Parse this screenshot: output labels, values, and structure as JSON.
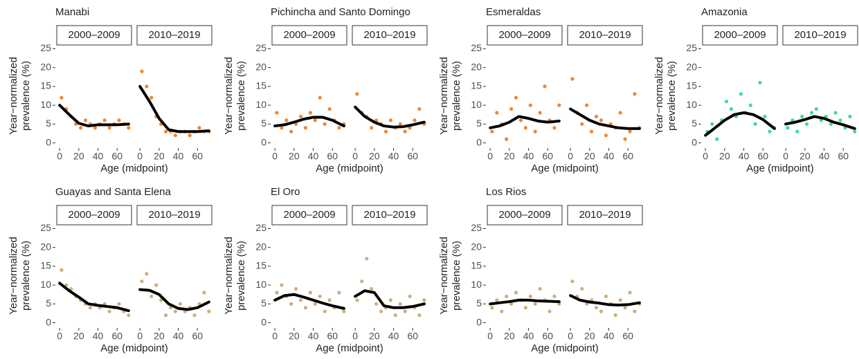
{
  "chart_data": [
    {
      "type": "scatter",
      "title": "Manabi",
      "color": "#ee8631",
      "xlabel": "Age (midpoint)",
      "ylabel": [
        "Year−normalized",
        "prevalence (%)"
      ],
      "xlim": [
        -3,
        75
      ],
      "xticks": [
        0,
        20,
        40,
        60
      ],
      "ylim": [
        -1,
        26
      ],
      "yticks": [
        0,
        5,
        10,
        15,
        20,
        25
      ],
      "facets": [
        {
          "label": "2000–2009",
          "x": [
            2,
            7,
            12,
            17,
            22,
            27,
            32,
            37,
            42,
            47,
            52,
            57,
            62,
            67,
            72
          ],
          "y": [
            12,
            9,
            7,
            5,
            4,
            6,
            5,
            4,
            5,
            6,
            4,
            5,
            6,
            5,
            4
          ],
          "smooth_x": [
            0,
            10,
            20,
            30,
            40,
            50,
            60,
            72
          ],
          "smooth_y": [
            10,
            7.5,
            5.2,
            4.5,
            4.8,
            4.8,
            4.8,
            5
          ]
        },
        {
          "label": "2010–2019",
          "x": [
            2,
            7,
            12,
            17,
            22,
            27,
            32,
            37,
            42,
            47,
            52,
            57,
            62,
            67,
            72
          ],
          "y": [
            19,
            15,
            12,
            7,
            5,
            3,
            3,
            2,
            3,
            3,
            2,
            3,
            4,
            3,
            3
          ],
          "smooth_x": [
            0,
            10,
            20,
            30,
            40,
            50,
            60,
            72
          ],
          "smooth_y": [
            15,
            11,
            6.5,
            3.5,
            3,
            3,
            3,
            3.2
          ]
        }
      ]
    },
    {
      "type": "scatter",
      "title": "Pichincha and Santo Domingo",
      "color": "#ee8631",
      "xlabel": "Age (midpoint)",
      "ylabel": [
        "Year−normalized",
        "prevalence (%)"
      ],
      "xlim": [
        -3,
        75
      ],
      "xticks": [
        0,
        20,
        40,
        60
      ],
      "ylim": [
        -1,
        26
      ],
      "yticks": [
        0,
        5,
        10,
        15,
        20,
        25
      ],
      "facets": [
        {
          "label": "2000–2009",
          "x": [
            2,
            7,
            12,
            17,
            22,
            27,
            32,
            37,
            42,
            47,
            52,
            57,
            62,
            67,
            72
          ],
          "y": [
            8,
            4,
            6,
            3,
            5,
            7,
            4,
            8,
            6,
            12,
            5,
            9,
            6,
            4,
            5
          ],
          "smooth_x": [
            0,
            10,
            20,
            30,
            40,
            50,
            60,
            72
          ],
          "smooth_y": [
            4.5,
            4.8,
            5.5,
            6.3,
            6.8,
            6.8,
            6,
            4.5
          ]
        },
        {
          "label": "2010–2019",
          "x": [
            2,
            7,
            12,
            17,
            22,
            27,
            32,
            37,
            42,
            47,
            52,
            57,
            62,
            67,
            72
          ],
          "y": [
            13,
            8,
            7,
            4,
            6,
            5,
            3,
            6,
            4,
            5,
            3,
            4,
            6,
            9,
            5
          ],
          "smooth_x": [
            0,
            10,
            20,
            30,
            40,
            50,
            60,
            72
          ],
          "smooth_y": [
            9.5,
            7,
            5.5,
            4.5,
            4.2,
            4.3,
            4.8,
            5.5
          ]
        }
      ]
    },
    {
      "type": "scatter",
      "title": "Esmeraldas",
      "color": "#ee8631",
      "xlabel": "Age (midpoint)",
      "ylabel": [
        "Year−normalized",
        "prevalence (%)"
      ],
      "xlim": [
        -3,
        75
      ],
      "xticks": [
        0,
        20,
        40,
        60
      ],
      "ylim": [
        -1,
        26
      ],
      "yticks": [
        0,
        5,
        10,
        15,
        20,
        25
      ],
      "facets": [
        {
          "label": "2000–2009",
          "x": [
            2,
            7,
            12,
            17,
            22,
            27,
            32,
            37,
            42,
            47,
            52,
            57,
            62,
            67,
            72
          ],
          "y": [
            3,
            8,
            5,
            1,
            9,
            12,
            6,
            4,
            10,
            3,
            8,
            15,
            6,
            4,
            10
          ],
          "smooth_x": [
            0,
            10,
            20,
            30,
            40,
            50,
            60,
            72
          ],
          "smooth_y": [
            4,
            4.5,
            5.5,
            7,
            6.5,
            5.8,
            5.5,
            5.8
          ]
        },
        {
          "label": "2010–2019",
          "x": [
            2,
            7,
            12,
            17,
            22,
            27,
            32,
            37,
            42,
            47,
            52,
            57,
            62,
            67,
            72
          ],
          "y": [
            17,
            8,
            5,
            10,
            3,
            7,
            6,
            2,
            5,
            4,
            8,
            1,
            3,
            13,
            4
          ],
          "smooth_x": [
            0,
            10,
            20,
            30,
            40,
            50,
            60,
            72
          ],
          "smooth_y": [
            9,
            7.5,
            6,
            5,
            4.5,
            4,
            3.8,
            3.8
          ]
        }
      ]
    },
    {
      "type": "scatter",
      "title": "Amazonia",
      "color": "#3fdc8e",
      "xlabel": "Age (midpoint)",
      "ylabel": [
        "Year−normalized",
        "prevalence (%)"
      ],
      "xlim": [
        -3,
        75
      ],
      "xticks": [
        0,
        20,
        40,
        60
      ],
      "ylim": [
        -1,
        26
      ],
      "yticks": [
        0,
        5,
        10,
        15,
        20,
        25
      ],
      "facets": [
        {
          "label": "2000–2009",
          "x": [
            2,
            7,
            12,
            17,
            22,
            27,
            32,
            37,
            42,
            47,
            52,
            57,
            62,
            67,
            72
          ],
          "y": [
            3,
            5,
            1,
            6,
            11,
            9,
            7,
            13,
            8,
            10,
            5,
            16,
            7,
            3,
            4
          ],
          "smooth_x": [
            0,
            10,
            20,
            30,
            40,
            50,
            60,
            72
          ],
          "smooth_y": [
            2,
            4,
            6,
            7.5,
            8,
            7.5,
            6.2,
            3.8
          ]
        },
        {
          "label": "2010–2019",
          "x": [
            2,
            7,
            12,
            17,
            22,
            27,
            32,
            37,
            42,
            47,
            52,
            57,
            62,
            67,
            72
          ],
          "y": [
            4,
            6,
            3,
            7,
            5,
            8,
            9,
            6,
            7,
            5,
            8,
            6,
            4,
            7,
            3
          ],
          "smooth_x": [
            0,
            10,
            20,
            30,
            40,
            50,
            60,
            72
          ],
          "smooth_y": [
            5,
            5.5,
            6.2,
            7,
            6.5,
            5.5,
            4.8,
            3.8
          ]
        }
      ]
    },
    {
      "type": "scatter",
      "title": "Guayas and Santa Elena",
      "color": "#cfad7f",
      "xlabel": "Age (midpoint)",
      "ylabel": [
        "Year−normalized",
        "prevalence (%)"
      ],
      "xlim": [
        -3,
        75
      ],
      "xticks": [
        0,
        20,
        40,
        60
      ],
      "ylim": [
        -1,
        26
      ],
      "yticks": [
        0,
        5,
        10,
        15,
        20,
        25
      ],
      "facets": [
        {
          "label": "2000–2009",
          "x": [
            2,
            7,
            12,
            17,
            22,
            27,
            32,
            37,
            42,
            47,
            52,
            57,
            62,
            67,
            72
          ],
          "y": [
            14,
            10,
            9,
            7,
            6,
            5,
            4,
            5,
            4,
            5,
            3,
            4,
            5,
            3,
            2
          ],
          "smooth_x": [
            0,
            10,
            20,
            30,
            40,
            50,
            60,
            72
          ],
          "smooth_y": [
            10.5,
            8.5,
            6.8,
            5,
            4.6,
            4.3,
            4,
            3.2
          ]
        },
        {
          "label": "2010–2019",
          "x": [
            2,
            7,
            12,
            17,
            22,
            27,
            32,
            37,
            42,
            47,
            52,
            57,
            62,
            67,
            72
          ],
          "y": [
            11,
            13,
            7,
            10,
            6,
            2,
            4,
            3,
            5,
            3,
            4,
            2,
            5,
            8,
            3
          ],
          "smooth_x": [
            0,
            10,
            20,
            30,
            40,
            50,
            60,
            72
          ],
          "smooth_y": [
            8.8,
            8.6,
            7.5,
            5,
            3.8,
            3.5,
            4,
            5.5
          ]
        }
      ]
    },
    {
      "type": "scatter",
      "title": "El Oro",
      "color": "#cfad7f",
      "xlabel": "Age (midpoint)",
      "ylabel": [
        "Year−normalized",
        "prevalence (%)"
      ],
      "xlim": [
        -3,
        75
      ],
      "xticks": [
        0,
        20,
        40,
        60
      ],
      "ylim": [
        -1,
        26
      ],
      "yticks": [
        0,
        5,
        10,
        15,
        20,
        25
      ],
      "facets": [
        {
          "label": "2000–2009",
          "x": [
            2,
            7,
            12,
            17,
            22,
            27,
            32,
            37,
            42,
            47,
            52,
            57,
            62,
            67,
            72
          ],
          "y": [
            8,
            10,
            7,
            5,
            9,
            6,
            4,
            8,
            5,
            7,
            3,
            6,
            4,
            8,
            3
          ],
          "smooth_x": [
            0,
            10,
            20,
            30,
            40,
            50,
            60,
            72
          ],
          "smooth_y": [
            6,
            7.2,
            7.5,
            6.8,
            6,
            5.2,
            4.5,
            3.8
          ]
        },
        {
          "label": "2010–2019",
          "x": [
            2,
            7,
            12,
            17,
            22,
            27,
            32,
            37,
            42,
            47,
            52,
            57,
            62,
            67,
            72
          ],
          "y": [
            6,
            11,
            17,
            9,
            5,
            3,
            4,
            6,
            2,
            5,
            3,
            7,
            4,
            2,
            6
          ],
          "smooth_x": [
            0,
            10,
            20,
            30,
            40,
            50,
            60,
            72
          ],
          "smooth_y": [
            7,
            8.5,
            8,
            4.5,
            4,
            4,
            4.3,
            5
          ]
        }
      ]
    },
    {
      "type": "scatter",
      "title": "Los Rios",
      "color": "#cfad7f",
      "xlabel": "Age (midpoint)",
      "ylabel": [
        "Year−normalized",
        "prevalence (%)"
      ],
      "xlim": [
        -3,
        75
      ],
      "xticks": [
        0,
        20,
        40,
        60
      ],
      "ylim": [
        -1,
        26
      ],
      "yticks": [
        0,
        5,
        10,
        15,
        20,
        25
      ],
      "facets": [
        {
          "label": "2000–2009",
          "x": [
            2,
            7,
            12,
            17,
            22,
            27,
            32,
            37,
            42,
            47,
            52,
            57,
            62,
            67,
            72
          ],
          "y": [
            4,
            6,
            3,
            7,
            5,
            8,
            6,
            4,
            7,
            5,
            9,
            6,
            3,
            7,
            5
          ],
          "smooth_x": [
            0,
            10,
            20,
            30,
            40,
            50,
            60,
            72
          ],
          "smooth_y": [
            5,
            5.3,
            5.6,
            6,
            6,
            5.8,
            5.7,
            5.6
          ]
        },
        {
          "label": "2010–2019",
          "x": [
            2,
            7,
            12,
            17,
            22,
            27,
            32,
            37,
            42,
            47,
            52,
            57,
            62,
            67,
            72
          ],
          "y": [
            11,
            7,
            9,
            5,
            6,
            4,
            3,
            7,
            5,
            2,
            6,
            4,
            8,
            3,
            5
          ],
          "smooth_x": [
            0,
            10,
            20,
            30,
            40,
            50,
            60,
            72
          ],
          "smooth_y": [
            7.2,
            6,
            5.5,
            5.2,
            4.8,
            4.7,
            4.8,
            5.3
          ]
        }
      ]
    }
  ]
}
